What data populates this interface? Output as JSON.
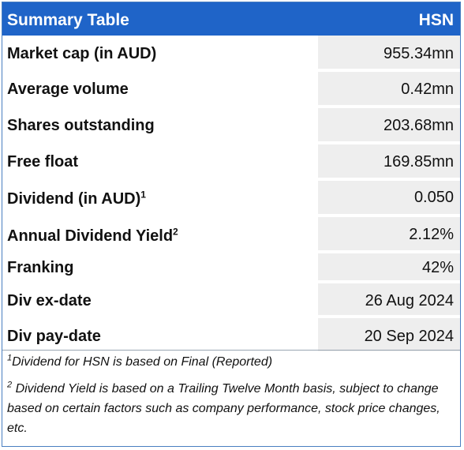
{
  "header": {
    "title": "Summary Table",
    "ticker": "HSN"
  },
  "rows": [
    {
      "label": "Market cap (in AUD)",
      "sup": "",
      "value": "955.34mn"
    },
    {
      "label": "Average volume",
      "sup": "",
      "value": "0.42mn"
    },
    {
      "label": "Shares outstanding",
      "sup": "",
      "value": "203.68mn"
    },
    {
      "label": "Free float",
      "sup": "",
      "value": "169.85mn"
    },
    {
      "label": "Dividend (in AUD)",
      "sup": "1",
      "value": "0.050"
    },
    {
      "label": "Annual Dividend Yield",
      "sup": "2",
      "value": "2.12%"
    },
    {
      "label": "Franking",
      "sup": "",
      "value": "42%"
    },
    {
      "label": "Div ex-date",
      "sup": "",
      "value": "26 Aug 2024"
    },
    {
      "label": "Div pay-date",
      "sup": "",
      "value": "20 Sep 2024"
    }
  ],
  "footnotes": [
    {
      "marker": "1",
      "text": "Dividend for HSN is based on Final (Reported)"
    },
    {
      "marker": "2",
      "text": " Dividend Yield is based on a Trailing Twelve Month basis, subject to change based on certain factors such as company performance, stock price changes, etc."
    }
  ],
  "colors": {
    "header_bg": "#1f64c8",
    "value_bg": "#eeeeee",
    "border": "#4a7fc1"
  }
}
